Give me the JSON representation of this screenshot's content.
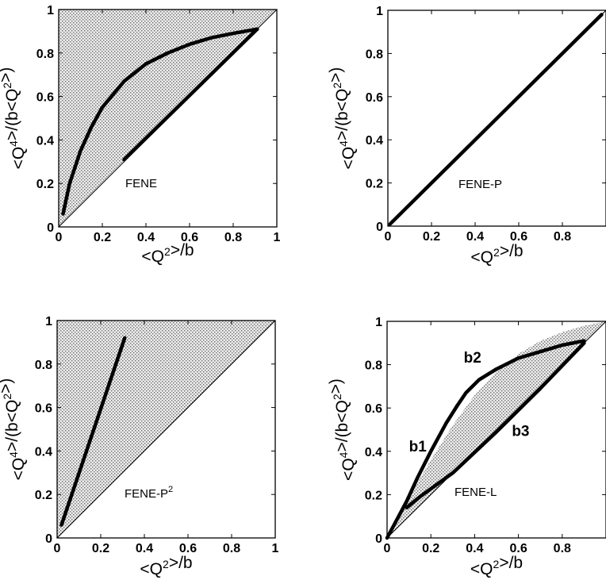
{
  "chart_data": [
    {
      "type": "line",
      "panel_label": "FENE",
      "xlabel": "<Q2>/b",
      "ylabel": "<Q4>/(b<Q2>)",
      "xlim": [
        0,
        1
      ],
      "ylim": [
        0,
        1
      ],
      "xticks": [
        "0",
        "0.2",
        "0.4",
        "0.6",
        "0.8",
        "1"
      ],
      "yticks": [
        "0",
        "0.2",
        "0.4",
        "0.6",
        "0.8",
        "1"
      ],
      "region": [
        [
          0,
          0
        ],
        [
          0,
          1
        ],
        [
          1,
          1
        ]
      ],
      "series": [
        {
          "x": [
            0.02,
            0.05,
            0.1,
            0.15,
            0.2,
            0.3,
            0.4,
            0.5,
            0.6,
            0.7,
            0.8,
            0.91
          ],
          "y": [
            0.06,
            0.2,
            0.35,
            0.46,
            0.55,
            0.67,
            0.75,
            0.8,
            0.84,
            0.87,
            0.89,
            0.91
          ]
        },
        {
          "x": [
            0.3,
            0.91
          ],
          "y": [
            0.31,
            0.91
          ]
        }
      ]
    },
    {
      "type": "line",
      "panel_label": "FENE-P",
      "xlabel": "<Q2>/b",
      "ylabel": "<Q4>/(b<Q2>)",
      "xlim": [
        0,
        1
      ],
      "ylim": [
        0,
        1
      ],
      "xticks": [
        "0",
        "0.2",
        "0.4",
        "0.6",
        "0.8",
        ""
      ],
      "yticks": [
        "0",
        "0.2",
        "0.4",
        "0.6",
        "0.8",
        "1"
      ],
      "region": [],
      "series": [
        {
          "x": [
            0.01,
            0.98
          ],
          "y": [
            0.01,
            0.98
          ]
        }
      ]
    },
    {
      "type": "line",
      "panel_label": "FENE-P",
      "panel_label_sup": "2",
      "xlabel": "<Q2>/b",
      "ylabel": "<Q4>/(b<Q2>)",
      "xlim": [
        0,
        1
      ],
      "ylim": [
        0,
        1
      ],
      "xticks": [
        "0",
        "0.2",
        "0.4",
        "0.6",
        "0.8",
        "1"
      ],
      "yticks": [
        "0",
        "0.2",
        "0.4",
        "0.6",
        "0.8",
        "1"
      ],
      "region": [
        [
          0,
          0
        ],
        [
          0,
          1
        ],
        [
          1,
          1
        ]
      ],
      "series": [
        {
          "x": [
            0.02,
            0.31
          ],
          "y": [
            0.06,
            0.92
          ]
        }
      ]
    },
    {
      "type": "line",
      "panel_label": "FENE-L",
      "xlabel": "<Q2>/b",
      "ylabel": "<Q4>/(b<Q2>)",
      "xlim": [
        0,
        1
      ],
      "ylim": [
        0,
        1
      ],
      "xticks": [
        "0",
        "0.2",
        "0.4",
        "0.6",
        "0.8",
        ""
      ],
      "yticks": [
        "0",
        "0.2",
        "0.4",
        "0.6",
        "0.8",
        "1"
      ],
      "region": [
        [
          0,
          0
        ],
        [
          0.1,
          0.19
        ],
        [
          0.2,
          0.36
        ],
        [
          0.3,
          0.52
        ],
        [
          0.4,
          0.66
        ],
        [
          0.5,
          0.77
        ],
        [
          0.6,
          0.85
        ],
        [
          0.7,
          0.91
        ],
        [
          0.8,
          0.95
        ],
        [
          0.9,
          0.98
        ],
        [
          1,
          1
        ],
        [
          0.9,
          0.9
        ],
        [
          0.8,
          0.8
        ],
        [
          0.6,
          0.6
        ],
        [
          0.4,
          0.4
        ],
        [
          0.2,
          0.2
        ]
      ],
      "series": [
        {
          "x": [
            0,
            0.09,
            0.14,
            0.2,
            0.27,
            0.32
          ],
          "y": [
            0,
            0.17,
            0.28,
            0.4,
            0.53,
            0.61
          ]
        },
        {
          "x": [
            0.32,
            0.36,
            0.42,
            0.5,
            0.6,
            0.7,
            0.8,
            0.9
          ],
          "y": [
            0.61,
            0.67,
            0.73,
            0.78,
            0.83,
            0.86,
            0.89,
            0.91
          ]
        },
        {
          "x": [
            0.09,
            0.15,
            0.3,
            0.5,
            0.7,
            0.9
          ],
          "y": [
            0.14,
            0.19,
            0.3,
            0.49,
            0.69,
            0.9
          ]
        }
      ],
      "annotations": [
        {
          "text": "b1",
          "x": 0.1,
          "y": 0.4
        },
        {
          "text": "b2",
          "x": 0.35,
          "y": 0.81
        },
        {
          "text": "b3",
          "x": 0.57,
          "y": 0.47
        }
      ]
    }
  ]
}
